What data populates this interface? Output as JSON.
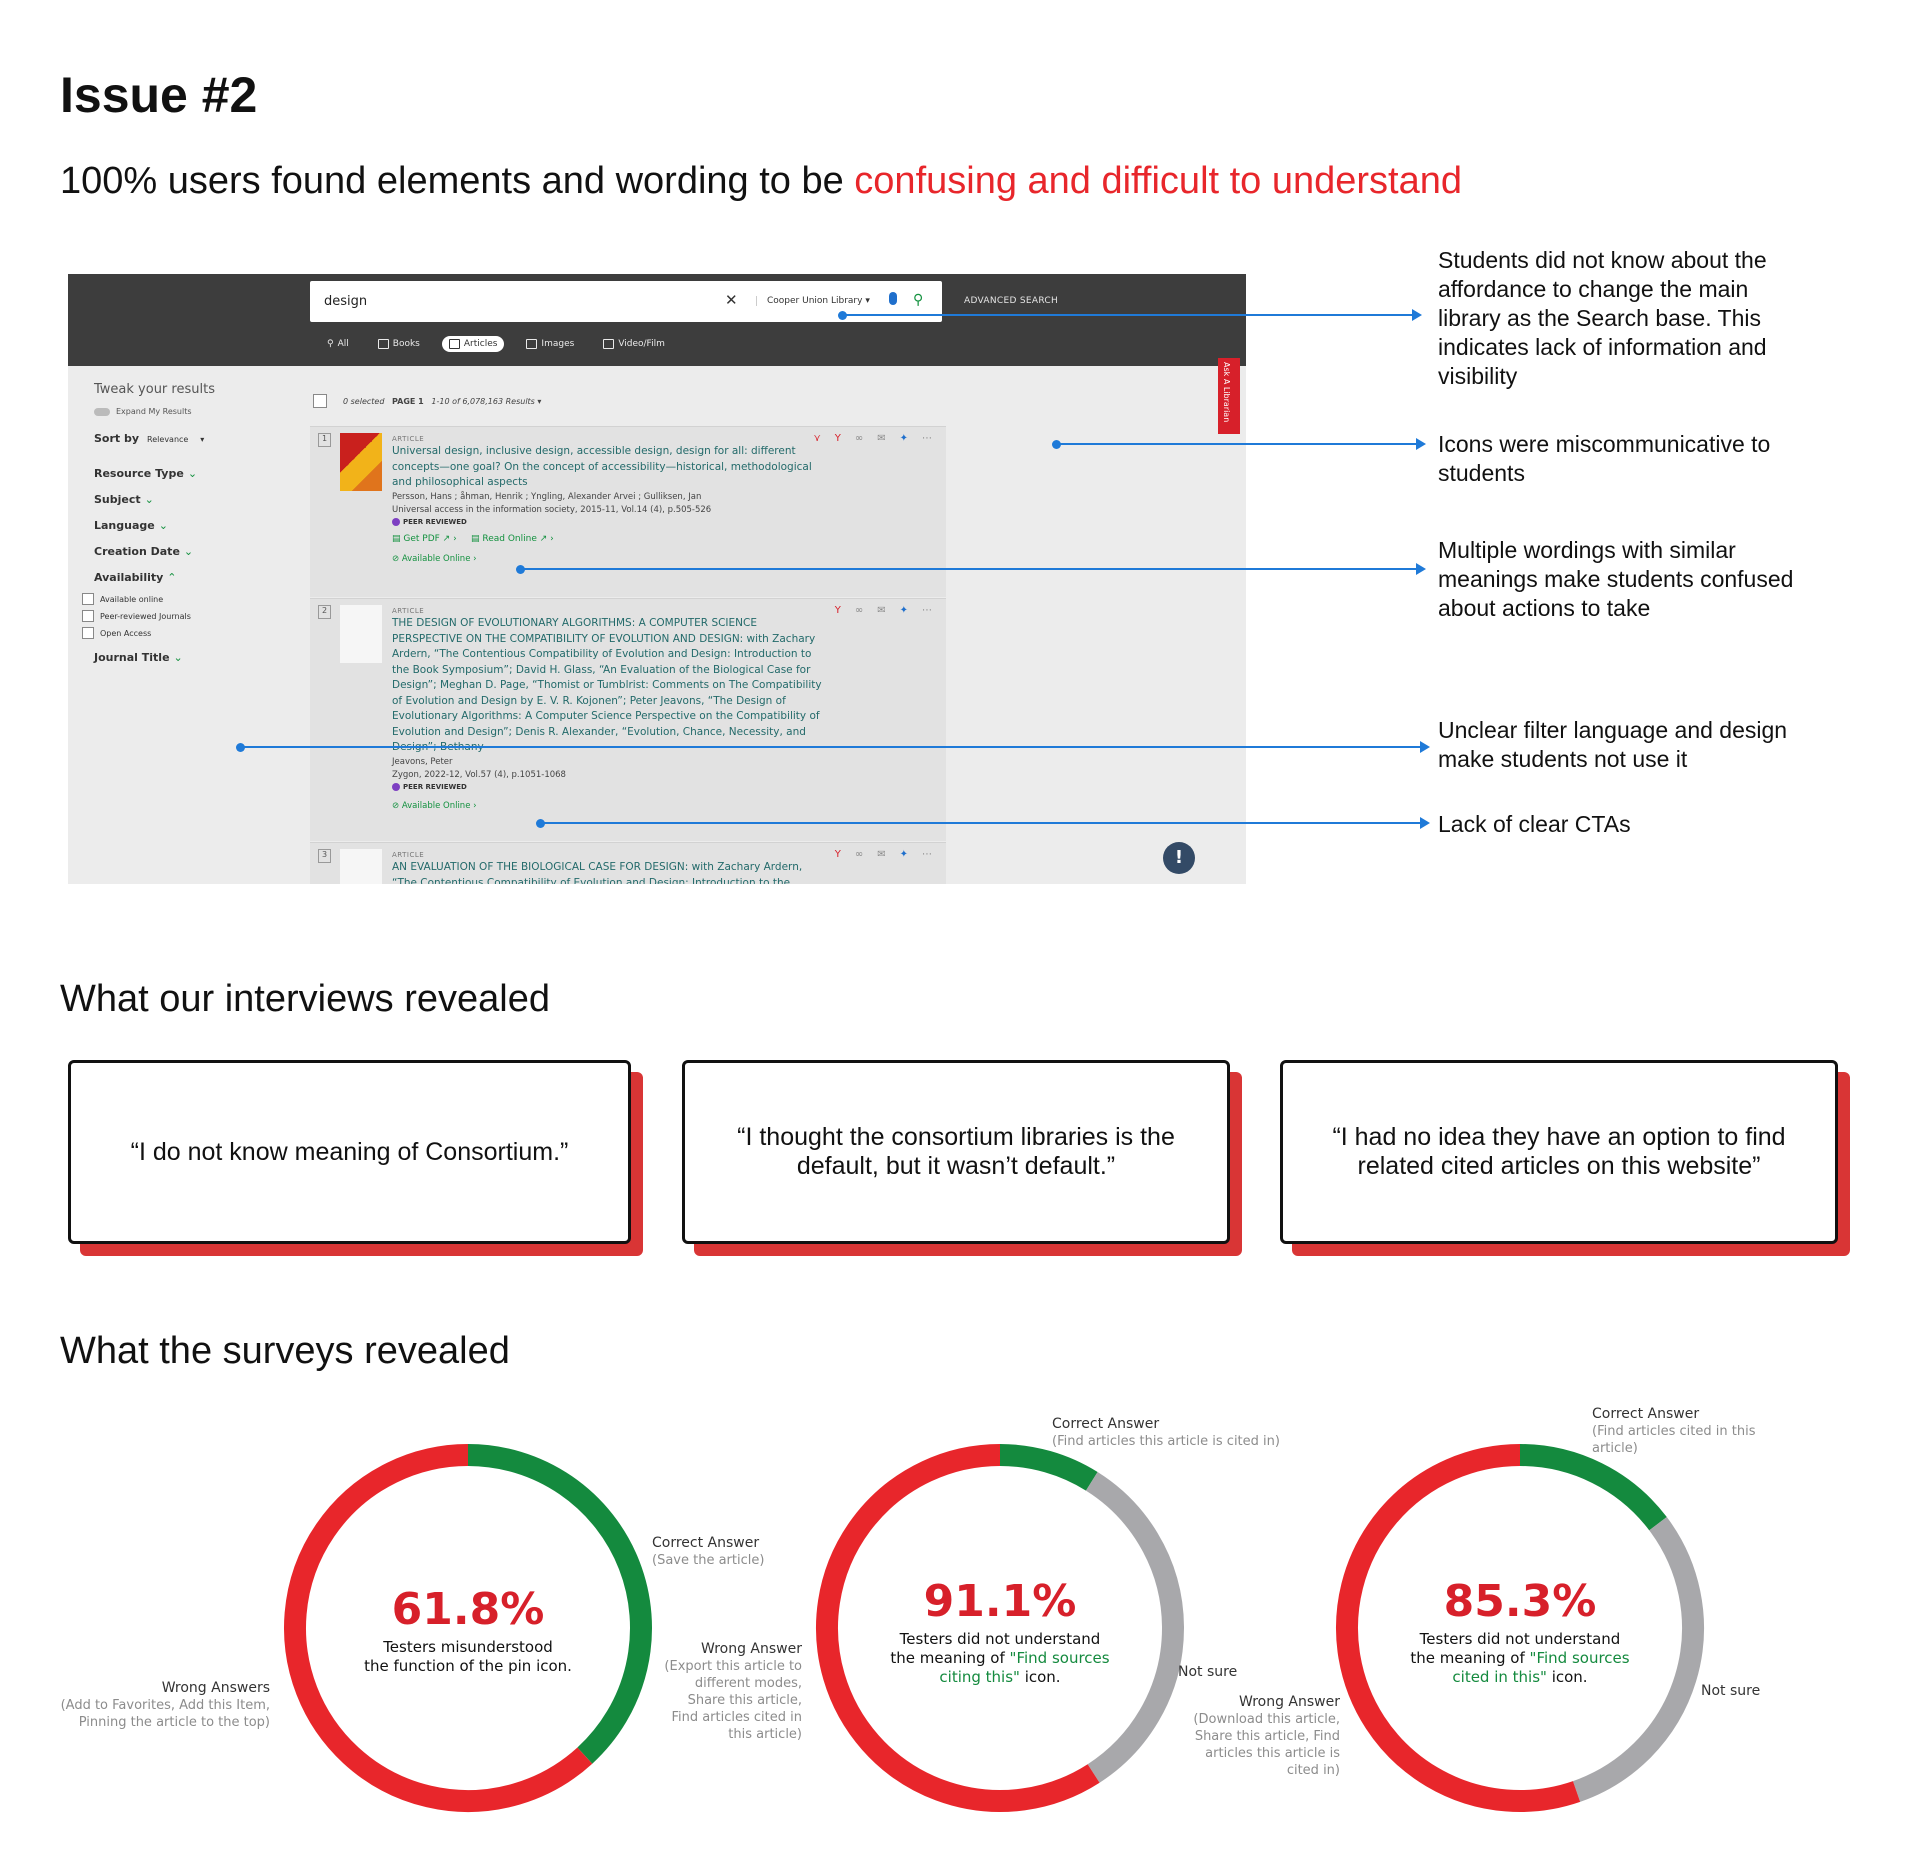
{
  "issue_title": "Issue #2",
  "subtitle": {
    "lead": "100% users found elements and wording to be ",
    "highlight": "confusing and difficult to understand",
    "highlight_color": "#e8262b"
  },
  "screenshot": {
    "search_query": "design",
    "clear_icon": "close-icon",
    "scope_label": "Cooper Union Library",
    "advanced_search": "ADVANCED SEARCH",
    "tabs": [
      "All",
      "Books",
      "Articles",
      "Images",
      "Video/Film"
    ],
    "active_tab": "Articles",
    "ask_librarian": "Ask A Librarian",
    "sidebar": {
      "tweak": "Tweak your results",
      "expand": "Expand My Results",
      "sort_label": "Sort by",
      "sort_value": "Relevance",
      "facets": [
        "Resource Type",
        "Subject",
        "Language",
        "Creation Date",
        "Availability"
      ],
      "availability_options": [
        "Available online",
        "Peer-reviewed Journals",
        "Open Access"
      ],
      "journal_title": "Journal Title"
    },
    "results_header": {
      "selected": "0 selected",
      "page": "PAGE 1",
      "count": "1-10 of 6,078,163 Results"
    },
    "results": [
      {
        "num": "1",
        "type": "ARTICLE",
        "title": "Universal design, inclusive design, accessible design, design for all: different concepts—one goal? On the concept of accessibility—historical, methodological and philosophical aspects",
        "authors": "Persson, Hans ; åhman, Henrik ; Yngling, Alexander Arvei ; Gulliksen, Jan",
        "source": "Universal access in the information society, 2015-11, Vol.14 (4), p.505-526",
        "peer": "PEER REVIEWED",
        "get_pdf": "Get PDF",
        "read_online": "Read Online",
        "avail": "Available Online"
      },
      {
        "num": "2",
        "type": "ARTICLE",
        "title": "THE DESIGN OF EVOLUTIONARY ALGORITHMS: A COMPUTER SCIENCE PERSPECTIVE ON THE COMPATIBILITY OF EVOLUTION AND DESIGN: with Zachary Ardern, “The Contentious Compatibility of Evolution and Design: Introduction to the Book Symposium”; David H. Glass, “An Evaluation of the Biological Case for Design”; Meghan D. Page, “Thomist or Tumblrist: Comments on The Compatibility of Evolution and Design by E. V. R. Kojonen”; Peter Jeavons, “The Design of Evolutionary Algorithms: A Computer Science Perspective on the Compatibility of Evolution and Design”; Denis R. Alexander, “Evolution, Chance, Necessity, and Design”; Bethany",
        "authors": "Jeavons, Peter",
        "source": "Zygon, 2022-12, Vol.57 (4), p.1051-1068",
        "peer": "PEER REVIEWED",
        "avail": "Available Online"
      },
      {
        "num": "3",
        "type": "ARTICLE",
        "title": "AN EVALUATION OF THE BIOLOGICAL CASE FOR DESIGN: with Zachary Ardern, “The Contentious Compatibility of Evolution and Design: Introduction to the"
      }
    ],
    "feedback": "!"
  },
  "annotations": [
    "Students did not know about the affordance to change the main library as the Search base. This indicates lack of information and visibility",
    "Icons were miscommunicative to students",
    "Multiple wordings with similar meanings make students confused about actions to take",
    "Unclear filter language and design make students not use it",
    "Lack of clear CTAs"
  ],
  "interviews": {
    "heading": "What our interviews revealed",
    "quotes": [
      "“I do not know meaning of Consortium.”",
      "“I thought the consortium libraries is the default, but it wasn’t default.”",
      "“I had no idea they have an option to find related cited articles on this website”"
    ]
  },
  "surveys": {
    "heading": "What the surveys revealed",
    "colors": {
      "correct": "#148a3e",
      "wrong": "#e8262b",
      "not_sure": "#a8a8ab"
    },
    "donuts": [
      {
        "pct": "61.8%",
        "desc_lines": [
          "Testers misunderstood",
          "the function of the pin icon."
        ],
        "labels": {
          "correct": "Correct Answer",
          "correct_sub": "(Save the article)",
          "wrong": "Wrong Answers",
          "wrong_sub": "(Add to Favorites, Add this Item, Pinning the article to the top)"
        }
      },
      {
        "pct": "91.1%",
        "desc_pre": "Testers did not understand",
        "desc_mid": "the meaning of ",
        "desc_green": "\"Find sources citing this\"",
        "desc_post": " icon.",
        "labels": {
          "correct": "Correct Answer",
          "correct_sub": "(Find articles this article is cited in)",
          "not_sure": "Not sure",
          "wrong": "Wrong Answer",
          "wrong_sub": "(Export this article to different modes, Share this article, Find articles cited in this article)"
        }
      },
      {
        "pct": "85.3%",
        "desc_pre": "Testers did not understand",
        "desc_mid": "the meaning of ",
        "desc_green": "\"Find sources cited in this\"",
        "desc_post": " icon.",
        "labels": {
          "correct": "Correct Answer",
          "correct_sub": "(Find articles cited in this article)",
          "not_sure": "Not sure",
          "wrong": "Wrong Answer",
          "wrong_sub": "(Download this article, Share this article, Find articles this article is cited in)"
        }
      }
    ]
  },
  "chart_data": [
    {
      "type": "pie",
      "title": "",
      "categories": [
        "Correct Answer",
        "Wrong Answers"
      ],
      "values": [
        38.2,
        61.8
      ]
    },
    {
      "type": "pie",
      "title": "",
      "categories": [
        "Correct Answer",
        "Not sure",
        "Wrong Answer"
      ],
      "values": [
        8.9,
        32.0,
        59.1
      ]
    },
    {
      "type": "pie",
      "title": "",
      "categories": [
        "Correct Answer",
        "Not sure",
        "Wrong Answer"
      ],
      "values": [
        14.7,
        30.0,
        55.3
      ]
    }
  ]
}
